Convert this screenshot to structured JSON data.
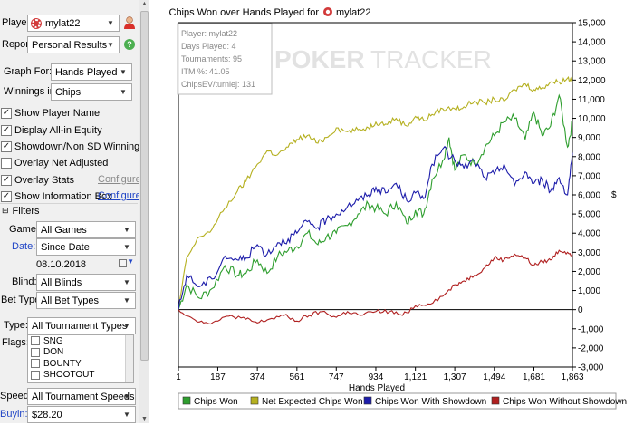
{
  "sidebar": {
    "player_label": "Player:",
    "player_value": "mylat22",
    "report_label": "Report:",
    "report_value": "Personal Results",
    "graph_for_label": "Graph For:",
    "graph_for_value": "Hands Played",
    "winnings_in_label": "Winnings in:",
    "winnings_in_value": "Chips",
    "checkboxes": [
      {
        "label": "Show Player Name",
        "checked": true
      },
      {
        "label": "Display All-in Equity",
        "checked": true
      },
      {
        "label": "Showdown/Non SD Winnings",
        "checked": true
      },
      {
        "label": "Overlay Net Adjusted",
        "checked": false
      },
      {
        "label": "Overlay Stats",
        "checked": true,
        "link": "Configure",
        "link_active": false
      },
      {
        "label": "Show Information Box",
        "checked": true,
        "link": "Configure",
        "link_active": true
      }
    ],
    "filters_label": "Filters",
    "game_label": "Game:",
    "game_value": "All Games",
    "date_label": "Date:",
    "date_value": "Since Date",
    "date_input": "08.10.2018",
    "blind_label": "Blind:",
    "blind_value": "All Blinds",
    "bet_type_label": "Bet Type:",
    "bet_type_value": "All Bet Types",
    "type_label": "Type:",
    "type_value": "All Tournament Types",
    "flags_label": "Flags:",
    "flags": [
      "SNG",
      "DON",
      "BOUNTY",
      "SHOOTOUT"
    ],
    "speed_label": "Speed:",
    "speed_value": "All Tournament Speeds",
    "buyin_label": "Buyin:",
    "buyin_value": "$28.20"
  },
  "info_box": {
    "player": "Player: mylat22",
    "days": "Days Played: 4",
    "tournaments": "Tournaments: 95",
    "itm": "ITM %: 41.05",
    "chipsev": "ChipsEV/turniej: 131"
  },
  "watermark": {
    "left": "POKER",
    "right": "TRACKER"
  },
  "colors": {
    "chips_won": "#2e9e2e",
    "net_expected": "#b5b020",
    "showdown": "#1c1caa",
    "non_showdown": "#b02020"
  },
  "chart_data": {
    "type": "line",
    "title_prefix": "Chips Won over Hands Played for",
    "title_player": "mylat22",
    "xlabel": "Hands Played",
    "ylabel": "$",
    "xlim": [
      1,
      1863
    ],
    "ylim": [
      -3000,
      15000
    ],
    "x_ticks": [
      "1",
      "187",
      "374",
      "561",
      "747",
      "934",
      "1,121",
      "1,307",
      "1,494",
      "1,681",
      "1,863"
    ],
    "y_ticks": [
      "15,000",
      "14,000",
      "13,000",
      "12,000",
      "11,000",
      "10,000",
      "9,000",
      "8,000",
      "7,000",
      "6,000",
      "5,000",
      "4,000",
      "3,000",
      "2,000",
      "1,000",
      "0",
      "-1,000",
      "-2,000",
      "-3,000"
    ],
    "legend_placement": "bottom",
    "series": [
      {
        "name": "Chips Won",
        "x": [
          1,
          40,
          100,
          160,
          220,
          280,
          320,
          374,
          420,
          470,
          520,
          561,
          610,
          660,
          700,
          747,
          800,
          850,
          900,
          934,
          980,
          1030,
          1080,
          1121,
          1160,
          1200,
          1250,
          1280,
          1307,
          1350,
          1400,
          1450,
          1494,
          1540,
          1590,
          1640,
          1681,
          1720,
          1760,
          1800,
          1840,
          1863
        ],
        "y": [
          0,
          1300,
          600,
          1100,
          2300,
          1800,
          1900,
          2600,
          1900,
          2800,
          3100,
          3300,
          4000,
          3400,
          3800,
          4000,
          4400,
          5000,
          5500,
          5300,
          5000,
          5600,
          4500,
          5200,
          5000,
          6800,
          7800,
          9000,
          7300,
          8100,
          7600,
          8500,
          9100,
          9800,
          10000,
          8900,
          10300,
          9100,
          9600,
          11200,
          8500,
          9800
        ]
      },
      {
        "name": "Net Expected Chips Won",
        "x": [
          1,
          40,
          100,
          160,
          220,
          280,
          320,
          374,
          420,
          470,
          520,
          561,
          610,
          660,
          700,
          747,
          800,
          850,
          900,
          934,
          980,
          1030,
          1080,
          1121,
          1160,
          1200,
          1250,
          1307,
          1350,
          1400,
          1450,
          1494,
          1540,
          1590,
          1640,
          1681,
          1720,
          1760,
          1800,
          1840,
          1863
        ],
        "y": [
          0,
          2700,
          3800,
          4200,
          5300,
          6200,
          6700,
          7600,
          8300,
          8100,
          8500,
          8900,
          9100,
          8700,
          9000,
          9500,
          9300,
          9400,
          9500,
          9800,
          9700,
          10000,
          9600,
          10100,
          9900,
          10200,
          10500,
          10500,
          10600,
          10900,
          10800,
          11000,
          10900,
          11500,
          11800,
          11500,
          11600,
          11900,
          11900,
          12100,
          12000
        ]
      },
      {
        "name": "Chips Won With Showdown",
        "x": [
          1,
          40,
          100,
          160,
          220,
          280,
          320,
          374,
          420,
          470,
          520,
          561,
          610,
          660,
          700,
          747,
          800,
          850,
          900,
          934,
          980,
          1030,
          1080,
          1121,
          1160,
          1200,
          1250,
          1307,
          1350,
          1400,
          1450,
          1494,
          1540,
          1590,
          1640,
          1681,
          1720,
          1760,
          1800,
          1840,
          1863
        ],
        "y": [
          0,
          1800,
          1200,
          1600,
          2800,
          2600,
          2700,
          3400,
          2900,
          3500,
          3700,
          4000,
          4600,
          4300,
          4700,
          5000,
          5400,
          5700,
          6000,
          6400,
          6100,
          6600,
          5700,
          6100,
          5800,
          7600,
          8400,
          7800,
          7400,
          7800,
          6900,
          7100,
          7600,
          6500,
          7200,
          6600,
          6800,
          6200,
          6900,
          6000,
          8200
        ]
      },
      {
        "name": "Chips Won Without Showdown",
        "x": [
          1,
          60,
          120,
          187,
          250,
          320,
          374,
          430,
          500,
          561,
          620,
          680,
          747,
          800,
          860,
          934,
          1000,
          1060,
          1121,
          1180,
          1250,
          1307,
          1350,
          1400,
          1450,
          1494,
          1540,
          1590,
          1640,
          1681,
          1720,
          1760,
          1800,
          1840,
          1863
        ],
        "y": [
          0,
          -400,
          -700,
          -600,
          -300,
          -500,
          -700,
          -500,
          -300,
          -600,
          -300,
          -100,
          -400,
          -100,
          -300,
          -100,
          -100,
          -300,
          200,
          300,
          700,
          1300,
          1500,
          1800,
          2200,
          2700,
          2600,
          2900,
          2700,
          2300,
          2500,
          2600,
          3100,
          3000,
          2900
        ]
      }
    ]
  }
}
